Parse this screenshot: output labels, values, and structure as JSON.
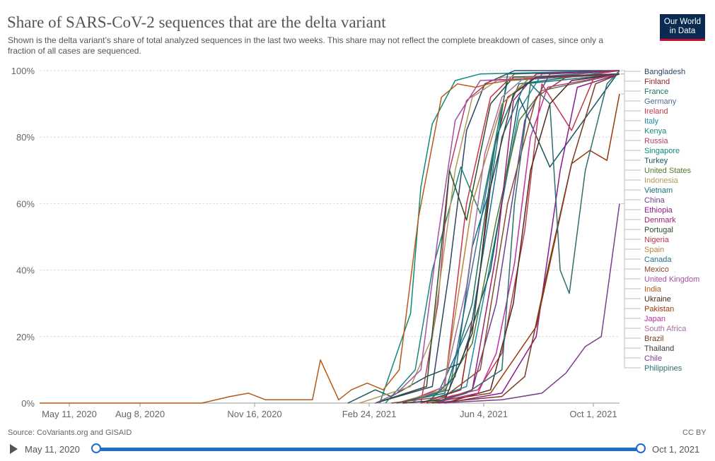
{
  "header": {
    "title": "Share of SARS-CoV-2 sequences that are the delta variant",
    "subtitle": "Shown is the delta variant’s share of total analyzed sequences in the last two weeks. This share may not reflect the complete breakdown of cases, since only a fraction of all cases are sequenced.",
    "logo_line1": "Our World",
    "logo_line2": "in Data"
  },
  "footer": {
    "source": "Source: CoVariants.org and GISAID",
    "license": "CC BY"
  },
  "timeline": {
    "start_label": "May 11, 2020",
    "end_label": "Oct 1, 2021",
    "play_icon": "play-icon"
  },
  "chart_data": {
    "type": "line",
    "title": "Share of SARS-CoV-2 sequences that are the delta variant",
    "xlabel": "",
    "ylabel": "",
    "x_ticks": [
      "May 11, 2020",
      "Aug 8, 2020",
      "Nov 16, 2020",
      "Feb 24, 2021",
      "Jun 4, 2021",
      "Oct 1, 2021"
    ],
    "y_ticks": [
      "0%",
      "20%",
      "40%",
      "60%",
      "80%",
      "100%"
    ],
    "xlim": [
      "2020-05-11",
      "2021-10-01"
    ],
    "ylim": [
      0,
      100
    ],
    "grid": "horizontal dashed",
    "legend_placement": "right (labels at line ends)",
    "series": [
      {
        "name": "Bangladesh",
        "color": "#2d4561",
        "points": [
          [
            "2021-03-01",
            0
          ],
          [
            "2021-04-20",
            5
          ],
          [
            "2021-05-05",
            40
          ],
          [
            "2021-05-20",
            82
          ],
          [
            "2021-06-05",
            96
          ],
          [
            "2021-07-01",
            100
          ],
          [
            "2021-10-01",
            100
          ]
        ]
      },
      {
        "name": "Finland",
        "color": "#9b1c1c",
        "points": [
          [
            "2021-04-10",
            0
          ],
          [
            "2021-05-15",
            4
          ],
          [
            "2021-06-01",
            40
          ],
          [
            "2021-06-12",
            75
          ],
          [
            "2021-06-25",
            92
          ],
          [
            "2021-07-20",
            98
          ],
          [
            "2021-10-01",
            100
          ]
        ]
      },
      {
        "name": "France",
        "color": "#18735d",
        "points": [
          [
            "2021-03-20",
            0
          ],
          [
            "2021-05-01",
            3
          ],
          [
            "2021-05-25",
            30
          ],
          [
            "2021-06-15",
            80
          ],
          [
            "2021-07-05",
            96
          ],
          [
            "2021-10-01",
            100
          ]
        ]
      },
      {
        "name": "Germany",
        "color": "#4c6a9c",
        "points": [
          [
            "2021-03-20",
            0
          ],
          [
            "2021-05-05",
            4
          ],
          [
            "2021-05-30",
            50
          ],
          [
            "2021-06-20",
            90
          ],
          [
            "2021-07-15",
            98
          ],
          [
            "2021-10-01",
            100
          ]
        ]
      },
      {
        "name": "Ireland",
        "color": "#c8354d",
        "points": [
          [
            "2021-03-25",
            0
          ],
          [
            "2021-05-01",
            5
          ],
          [
            "2021-05-20",
            60
          ],
          [
            "2021-06-10",
            92
          ],
          [
            "2021-07-01",
            99
          ],
          [
            "2021-10-01",
            100
          ]
        ]
      },
      {
        "name": "Italy",
        "color": "#1a8bab",
        "points": [
          [
            "2021-04-10",
            0
          ],
          [
            "2021-05-20",
            5
          ],
          [
            "2021-06-20",
            60
          ],
          [
            "2021-07-05",
            88
          ],
          [
            "2021-07-25",
            99
          ],
          [
            "2021-10-01",
            100
          ]
        ]
      },
      {
        "name": "Kenya",
        "color": "#168878",
        "points": [
          [
            "2021-03-10",
            0
          ],
          [
            "2021-04-05",
            10
          ],
          [
            "2021-04-20",
            40
          ],
          [
            "2021-05-15",
            71
          ],
          [
            "2021-06-01",
            57
          ],
          [
            "2021-06-25",
            97
          ],
          [
            "2021-10-01",
            99
          ]
        ]
      },
      {
        "name": "Russia",
        "color": "#b83a6b",
        "points": [
          [
            "2021-04-10",
            0
          ],
          [
            "2021-04-25",
            30
          ],
          [
            "2021-05-05",
            70
          ],
          [
            "2021-05-20",
            91
          ],
          [
            "2021-06-10",
            97
          ],
          [
            "2021-10-01",
            99
          ]
        ]
      },
      {
        "name": "Singapore",
        "color": "#0d8b7e",
        "points": [
          [
            "2021-03-05",
            0
          ],
          [
            "2021-04-01",
            27
          ],
          [
            "2021-04-10",
            65
          ],
          [
            "2021-04-20",
            84
          ],
          [
            "2021-05-10",
            97
          ],
          [
            "2021-06-01",
            99
          ],
          [
            "2021-10-01",
            100
          ]
        ]
      },
      {
        "name": "Turkey",
        "color": "#19555e",
        "points": [
          [
            "2021-02-05",
            0
          ],
          [
            "2021-03-01",
            4
          ],
          [
            "2021-03-15",
            2
          ],
          [
            "2021-04-15",
            8
          ],
          [
            "2021-05-15",
            12
          ],
          [
            "2021-06-10",
            40
          ],
          [
            "2021-07-05",
            92
          ],
          [
            "2021-08-01",
            71
          ],
          [
            "2021-08-20",
            80
          ],
          [
            "2021-10-01",
            100
          ]
        ]
      },
      {
        "name": "United States",
        "color": "#4f7c2e",
        "points": [
          [
            "2021-03-20",
            0
          ],
          [
            "2021-05-01",
            4
          ],
          [
            "2021-05-25",
            18
          ],
          [
            "2021-06-15",
            55
          ],
          [
            "2021-07-05",
            85
          ],
          [
            "2021-07-25",
            94
          ],
          [
            "2021-10-01",
            99
          ]
        ]
      },
      {
        "name": "Indonesia",
        "color": "#b09a5b",
        "points": [
          [
            "2021-02-15",
            0
          ],
          [
            "2021-04-01",
            5
          ],
          [
            "2021-04-20",
            20
          ],
          [
            "2021-05-10",
            70
          ],
          [
            "2021-05-25",
            92
          ],
          [
            "2021-06-20",
            98
          ],
          [
            "2021-10-01",
            99
          ]
        ]
      },
      {
        "name": "Vietnam",
        "color": "#107080",
        "points": [
          [
            "2021-04-15",
            0
          ],
          [
            "2021-05-10",
            8
          ],
          [
            "2021-05-25",
            47
          ],
          [
            "2021-06-10",
            65
          ],
          [
            "2021-06-25",
            99
          ],
          [
            "2021-10-01",
            100
          ]
        ]
      },
      {
        "name": "China",
        "color": "#6d3e91",
        "points": [
          [
            "2021-04-25",
            0
          ],
          [
            "2021-05-25",
            4
          ],
          [
            "2021-06-15",
            30
          ],
          [
            "2021-07-10",
            85
          ],
          [
            "2021-08-01",
            99
          ],
          [
            "2021-10-01",
            100
          ]
        ]
      },
      {
        "name": "Ethiopia",
        "color": "#8a1a8f",
        "points": [
          [
            "2021-05-01",
            0
          ],
          [
            "2021-06-20",
            3
          ],
          [
            "2021-07-20",
            20
          ],
          [
            "2021-08-10",
            70
          ],
          [
            "2021-08-25",
            95
          ],
          [
            "2021-10-01",
            99
          ]
        ]
      },
      {
        "name": "Denmark",
        "color": "#9c1f6f",
        "points": [
          [
            "2021-04-20",
            0
          ],
          [
            "2021-05-25",
            4
          ],
          [
            "2021-06-15",
            45
          ],
          [
            "2021-06-30",
            91
          ],
          [
            "2021-07-20",
            99
          ],
          [
            "2021-10-01",
            100
          ]
        ]
      },
      {
        "name": "Portugal",
        "color": "#2e4f2c",
        "points": [
          [
            "2021-03-01",
            0
          ],
          [
            "2021-04-15",
            5
          ],
          [
            "2021-05-05",
            70
          ],
          [
            "2021-05-20",
            55
          ],
          [
            "2021-06-10",
            90
          ],
          [
            "2021-06-30",
            98
          ],
          [
            "2021-10-01",
            99
          ]
        ]
      },
      {
        "name": "Nigeria",
        "color": "#c0394f",
        "points": [
          [
            "2021-04-10",
            0
          ],
          [
            "2021-05-30",
            4
          ],
          [
            "2021-06-20",
            15
          ],
          [
            "2021-07-10",
            52
          ],
          [
            "2021-07-25",
            96
          ],
          [
            "2021-08-20",
            82
          ],
          [
            "2021-09-10",
            99
          ],
          [
            "2021-10-01",
            100
          ]
        ]
      },
      {
        "name": "Spain",
        "color": "#b8843a",
        "points": [
          [
            "2021-03-20",
            0
          ],
          [
            "2021-04-30",
            4
          ],
          [
            "2021-05-25",
            60
          ],
          [
            "2021-06-20",
            90
          ],
          [
            "2021-07-15",
            98
          ],
          [
            "2021-10-01",
            99
          ]
        ]
      },
      {
        "name": "Canada",
        "color": "#1f6f8b",
        "points": [
          [
            "2021-03-20",
            0
          ],
          [
            "2021-04-25",
            3
          ],
          [
            "2021-05-25",
            25
          ],
          [
            "2021-06-20",
            80
          ],
          [
            "2021-07-10",
            96
          ],
          [
            "2021-10-01",
            99
          ]
        ]
      },
      {
        "name": "Mexico",
        "color": "#8a4b2c",
        "points": [
          [
            "2021-03-15",
            0
          ],
          [
            "2021-05-01",
            2
          ],
          [
            "2021-06-01",
            10
          ],
          [
            "2021-06-25",
            60
          ],
          [
            "2021-07-20",
            92
          ],
          [
            "2021-08-15",
            98
          ],
          [
            "2021-10-01",
            99
          ]
        ]
      },
      {
        "name": "United Kingdom",
        "color": "#a54fa6",
        "points": [
          [
            "2021-03-01",
            0
          ],
          [
            "2021-03-20",
            3
          ],
          [
            "2021-04-10",
            10
          ],
          [
            "2021-04-25",
            50
          ],
          [
            "2021-05-10",
            85
          ],
          [
            "2021-06-01",
            97
          ],
          [
            "2021-10-01",
            99
          ]
        ]
      },
      {
        "name": "India",
        "color": "#b55a18",
        "points": [
          [
            "2020-05-11",
            0
          ],
          [
            "2020-09-30",
            0
          ],
          [
            "2020-10-25",
            2
          ],
          [
            "2020-11-10",
            3
          ],
          [
            "2020-11-25",
            1
          ],
          [
            "2020-12-15",
            1
          ],
          [
            "2021-01-05",
            1
          ],
          [
            "2021-01-12",
            13
          ],
          [
            "2021-01-28",
            1
          ],
          [
            "2021-02-08",
            4
          ],
          [
            "2021-02-22",
            6
          ],
          [
            "2021-03-08",
            4
          ],
          [
            "2021-03-22",
            10
          ],
          [
            "2021-04-08",
            56
          ],
          [
            "2021-04-28",
            92
          ],
          [
            "2021-05-12",
            96
          ],
          [
            "2021-05-28",
            95
          ],
          [
            "2021-06-08",
            96
          ],
          [
            "2021-06-25",
            97
          ],
          [
            "2021-07-20",
            98
          ],
          [
            "2021-10-01",
            99
          ]
        ]
      },
      {
        "name": "Ukraine",
        "color": "#4b2a1a",
        "points": [
          [
            "2021-05-01",
            0
          ],
          [
            "2021-06-10",
            4
          ],
          [
            "2021-06-30",
            30
          ],
          [
            "2021-07-15",
            70
          ],
          [
            "2021-08-01",
            90
          ],
          [
            "2021-08-20",
            97
          ],
          [
            "2021-10-01",
            99
          ]
        ]
      },
      {
        "name": "Pakistan",
        "color": "#9c3a0f",
        "points": [
          [
            "2021-04-15",
            0
          ],
          [
            "2021-06-10",
            3
          ],
          [
            "2021-07-20",
            23
          ],
          [
            "2021-08-20",
            72
          ],
          [
            "2021-09-05",
            76
          ],
          [
            "2021-09-20",
            73
          ],
          [
            "2021-10-01",
            93
          ]
        ]
      },
      {
        "name": "Japan",
        "color": "#c02fa3",
        "points": [
          [
            "2021-04-20",
            0
          ],
          [
            "2021-05-30",
            3
          ],
          [
            "2021-06-15",
            15
          ],
          [
            "2021-07-01",
            42
          ],
          [
            "2021-07-15",
            80
          ],
          [
            "2021-07-30",
            95
          ],
          [
            "2021-10-01",
            99
          ]
        ]
      },
      {
        "name": "South Africa",
        "color": "#a96fa1",
        "points": [
          [
            "2021-04-01",
            0
          ],
          [
            "2021-04-30",
            5
          ],
          [
            "2021-05-20",
            35
          ],
          [
            "2021-06-05",
            75
          ],
          [
            "2021-06-20",
            92
          ],
          [
            "2021-07-10",
            98
          ],
          [
            "2021-10-01",
            99
          ]
        ]
      },
      {
        "name": "Brazil",
        "color": "#7a3b1e",
        "points": [
          [
            "2021-04-20",
            0
          ],
          [
            "2021-06-20",
            2
          ],
          [
            "2021-07-10",
            8
          ],
          [
            "2021-07-30",
            40
          ],
          [
            "2021-08-20",
            72
          ],
          [
            "2021-09-10",
            96
          ],
          [
            "2021-10-01",
            99
          ]
        ]
      },
      {
        "name": "Thailand",
        "color": "#3a3a3a",
        "points": [
          [
            "2021-03-25",
            0
          ],
          [
            "2021-05-01",
            1
          ],
          [
            "2021-05-25",
            21
          ],
          [
            "2021-06-10",
            65
          ],
          [
            "2021-06-30",
            93
          ],
          [
            "2021-07-20",
            98
          ],
          [
            "2021-10-01",
            99
          ]
        ]
      },
      {
        "name": "Chile",
        "color": "#7d3b8f",
        "points": [
          [
            "2021-04-25",
            0
          ],
          [
            "2021-06-20",
            1
          ],
          [
            "2021-07-25",
            3
          ],
          [
            "2021-08-15",
            9
          ],
          [
            "2021-09-01",
            17
          ],
          [
            "2021-09-15",
            20
          ],
          [
            "2021-10-01",
            60
          ]
        ]
      },
      {
        "name": "Philippines",
        "color": "#2e6e6e",
        "points": [
          [
            "2021-04-20",
            0
          ],
          [
            "2021-05-20",
            3
          ],
          [
            "2021-06-20",
            10
          ],
          [
            "2021-07-01",
            60
          ],
          [
            "2021-07-15",
            96
          ],
          [
            "2021-08-01",
            90
          ],
          [
            "2021-08-10",
            40
          ],
          [
            "2021-08-18",
            33
          ],
          [
            "2021-09-01",
            70
          ],
          [
            "2021-09-20",
            96
          ],
          [
            "2021-10-01",
            100
          ]
        ]
      }
    ]
  }
}
